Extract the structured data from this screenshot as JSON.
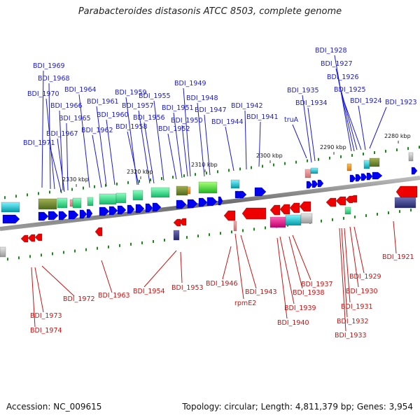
{
  "title": "Parabacteroides distasonis ATCC 8503, complete genome",
  "footer": {
    "accession": "Accession: NC_009615",
    "summary": "Topology: circular; Length: 4,811,379 bp; Genes: 3,954"
  },
  "colors": {
    "forward_label": "#1a1ad6",
    "reverse_label": "#cc1111",
    "backbone": "#777777",
    "tick": "#1a8a1a"
  },
  "scale_labels": [
    "2330 kbp",
    "2320 kbp",
    "2310 kbp",
    "2300 kbp",
    "2290 kbp",
    "2280 kbp"
  ],
  "forward_genes": [
    "BDI_1969",
    "BDI_1968",
    "BDI_1970",
    "BDI_1966",
    "BDI_1965",
    "BDI_1967",
    "BDI_1971",
    "BDI_1964",
    "BDI_1961",
    "BDI_1960",
    "BDI_1962",
    "BDI_1959",
    "BDI_1957",
    "BDI_1958",
    "BDI_1956",
    "BDI_1955",
    "BDI_1949",
    "BDI_1951",
    "BDI_1950",
    "BDI_1952",
    "BDI_1948",
    "BDI_1947",
    "BDI_1944",
    "BDI_1942",
    "BDI_1941",
    "BDI_1935",
    "BDI_1934",
    "truA",
    "BDI_1928",
    "BDI_1927",
    "BDI_1926",
    "BDI_1925",
    "BDI_1924",
    "BDI_1923"
  ],
  "reverse_genes": [
    "BDI_1972",
    "BDI_1973",
    "BDI_1974",
    "BDI_1963",
    "BDI_1954",
    "BDI_1953",
    "BDI_1946",
    "rpmE2",
    "BDI_1943",
    "BDI_1937",
    "BDI_1938",
    "BDI_1939",
    "BDI_1940",
    "BDI_1929",
    "BDI_1930",
    "BDI_1931",
    "BDI_1932",
    "BDI_1933",
    "BDI_1921"
  ]
}
